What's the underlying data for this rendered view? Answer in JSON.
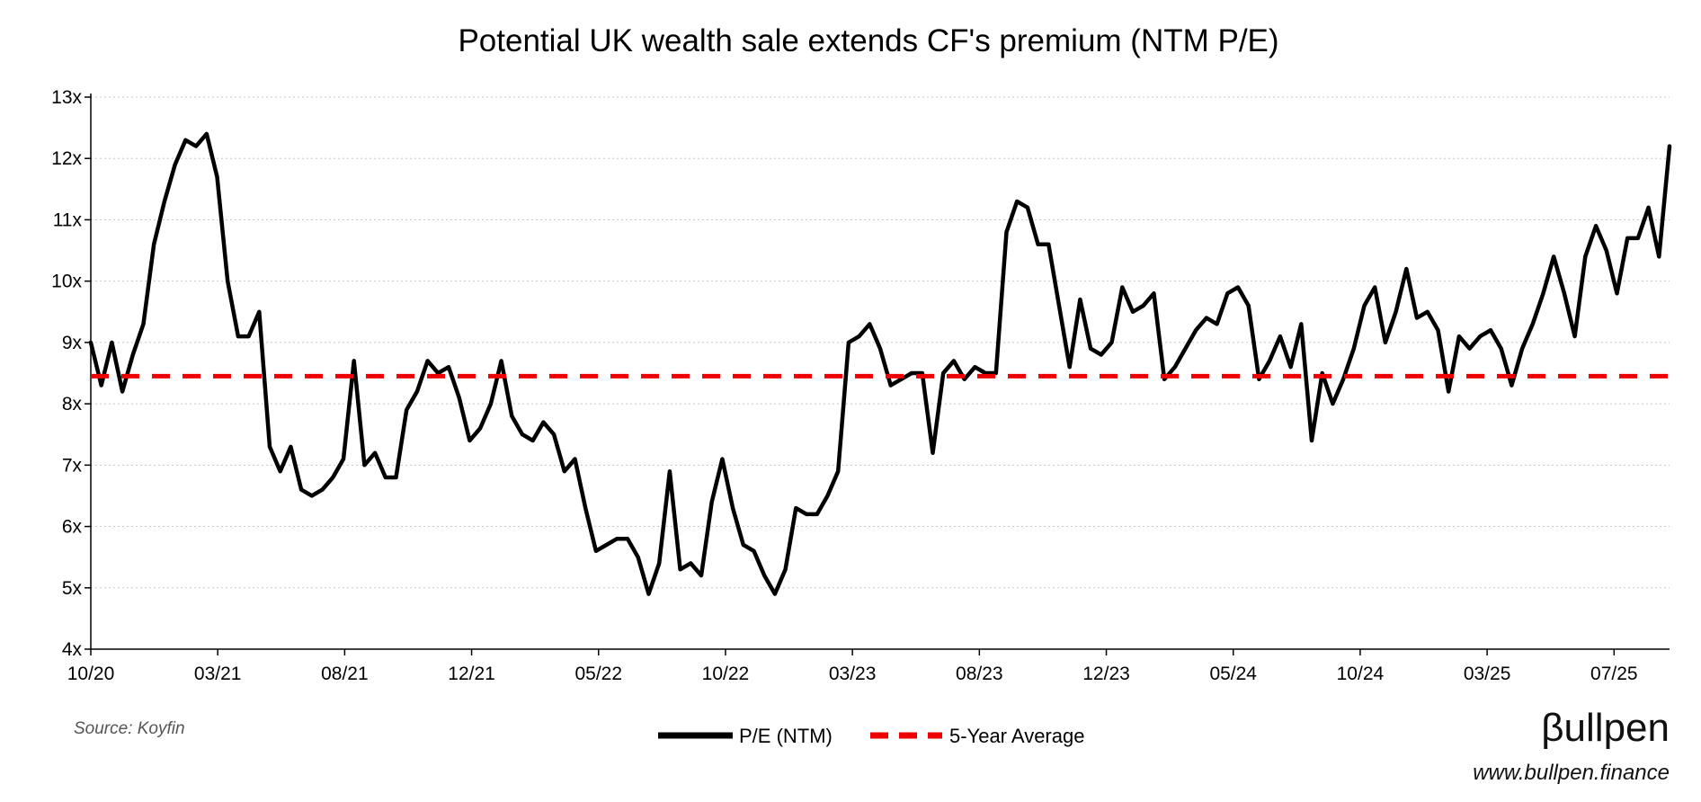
{
  "chart_data": {
    "type": "line",
    "title": "Potential UK wealth sale extends CF's premium (NTM P/E)",
    "xlabel": "",
    "ylabel": "",
    "x_tick_labels": [
      "10/20",
      "03/21",
      "08/21",
      "12/21",
      "05/22",
      "10/22",
      "03/23",
      "08/23",
      "12/23",
      "05/24",
      "10/24",
      "03/25",
      "07/25"
    ],
    "y_tick_labels": [
      "4x",
      "5x",
      "6x",
      "7x",
      "8x",
      "9x",
      "10x",
      "11x",
      "12x",
      "13x"
    ],
    "ylim": [
      4,
      13
    ],
    "x_range_index": [
      0,
      148
    ],
    "x_tick_index": [
      0,
      11.9,
      23.8,
      35.7,
      47.6,
      59.5,
      71.4,
      83.3,
      95.2,
      107.1,
      119.0,
      130.9,
      142.8
    ],
    "grid": true,
    "legend_position": "bottom-center",
    "series": [
      {
        "name": "P/E (NTM)",
        "color": "#000000",
        "style": "solid",
        "values": [
          9.0,
          8.3,
          9.0,
          8.2,
          8.8,
          9.3,
          10.6,
          11.3,
          11.9,
          12.3,
          12.2,
          12.4,
          11.7,
          10.0,
          9.1,
          9.1,
          9.5,
          7.3,
          6.9,
          7.3,
          6.6,
          6.5,
          6.6,
          6.8,
          7.1,
          8.7,
          7.0,
          7.2,
          6.8,
          6.8,
          7.9,
          8.2,
          8.7,
          8.5,
          8.6,
          8.1,
          7.4,
          7.6,
          8.0,
          8.7,
          7.8,
          7.5,
          7.4,
          7.7,
          7.5,
          6.9,
          7.1,
          6.3,
          5.6,
          5.7,
          5.8,
          5.8,
          5.5,
          4.9,
          5.4,
          6.9,
          5.3,
          5.4,
          5.2,
          6.4,
          7.1,
          6.3,
          5.7,
          5.6,
          5.2,
          4.9,
          5.3,
          6.3,
          6.2,
          6.2,
          6.5,
          6.9,
          9.0,
          9.1,
          9.3,
          8.9,
          8.3,
          8.4,
          8.5,
          8.5,
          7.2,
          8.5,
          8.7,
          8.4,
          8.6,
          8.5,
          8.5,
          10.8,
          11.3,
          11.2,
          10.6,
          10.6,
          9.6,
          8.6,
          9.7,
          8.9,
          8.8,
          9.0,
          9.9,
          9.5,
          9.6,
          9.8,
          8.4,
          8.6,
          8.9,
          9.2,
          9.4,
          9.3,
          9.8,
          9.9,
          9.6,
          8.4,
          8.7,
          9.1,
          8.6,
          9.3,
          7.4,
          8.5,
          8.0,
          8.4,
          8.9,
          9.6,
          9.9,
          9.0,
          9.5,
          10.2,
          9.4,
          9.5,
          9.2,
          8.2,
          9.1,
          8.9,
          9.1,
          9.2,
          8.9,
          8.3,
          8.9,
          9.3,
          9.8,
          10.4,
          9.8,
          9.1,
          10.4,
          10.9,
          10.5,
          9.8,
          10.7,
          10.7,
          11.2,
          10.4,
          12.2
        ]
      },
      {
        "name": "5-Year Average",
        "color": "#ee0000",
        "style": "dashed",
        "values": [
          8.45,
          8.45
        ]
      }
    ]
  },
  "source_text": "Source: Koyfin",
  "brand": {
    "name": "βullpen",
    "website": "www.bullpen.finance"
  }
}
